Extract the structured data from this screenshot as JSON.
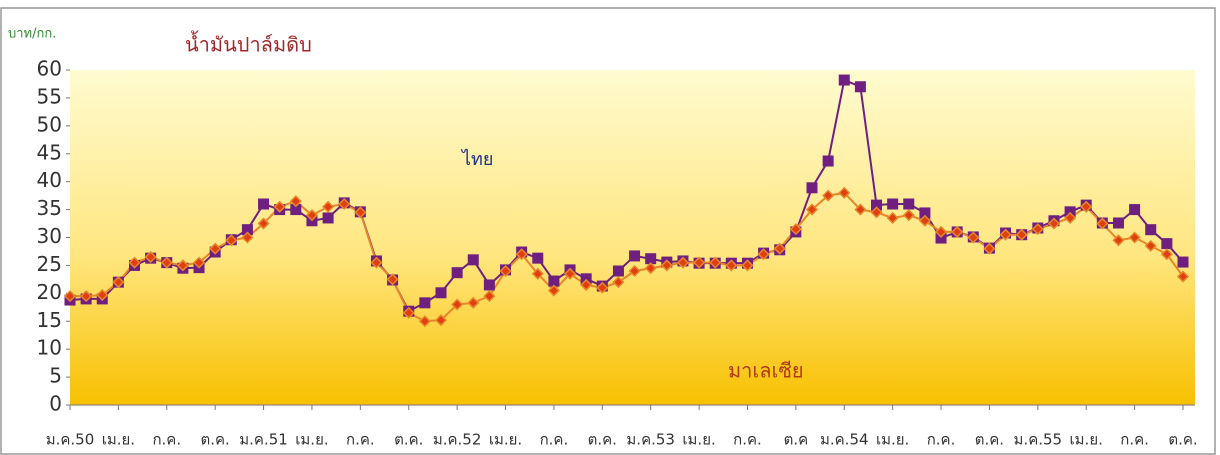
{
  "chart_data": {
    "type": "line",
    "title": "น้ำมันปาล์มดิบ",
    "y_label": "บาท/กก.",
    "categories": [
      "ม.ค.50",
      null,
      null,
      "เม.ย.",
      null,
      null,
      "ก.ค.",
      null,
      null,
      "ต.ค.",
      null,
      null,
      "ม.ค.51",
      null,
      null,
      "เม.ย.",
      null,
      null,
      "ก.ค.",
      null,
      null,
      "ต.ค.",
      null,
      null,
      "ม.ค.52",
      null,
      null,
      "เม.ย.",
      null,
      null,
      "ก.ค.",
      null,
      null,
      "ต.ค.",
      null,
      null,
      "ม.ค.53",
      null,
      null,
      "เม.ย.",
      null,
      null,
      "ก.ค.",
      null,
      null,
      "ต.ค",
      null,
      null,
      "ม.ค.54",
      null,
      null,
      "เม.ย.",
      null,
      null,
      "ก.ค.",
      null,
      null,
      "ต.ค.",
      null,
      null,
      "ม.ค.55",
      null,
      null,
      "เม.ย.",
      null,
      null,
      "ก.ค.",
      null,
      null,
      "ต.ค."
    ],
    "series": [
      {
        "name": "ไทย",
        "color": "#6e1f80",
        "marker": "square",
        "values": [
          18.8,
          19,
          19,
          22,
          25,
          26.3,
          25.5,
          24.5,
          24.6,
          27.4,
          29.6,
          31.4,
          36,
          35,
          35,
          33,
          33.5,
          36.2,
          34.6,
          25.8,
          22.4,
          16.8,
          18.3,
          20.1,
          23.7,
          26,
          21.5,
          24.2,
          27.4,
          26.3,
          22.2,
          24.2,
          22.6,
          21.3,
          24,
          26.7,
          26.2,
          25.6,
          25.8,
          25.4,
          25.4,
          25.4,
          25.4,
          27.2,
          27.8,
          31,
          38.9,
          43.7,
          58.2,
          57,
          35.8,
          36,
          36,
          34.4,
          29.9,
          31,
          30.1,
          28.1,
          30.8,
          30.5,
          31.7,
          33,
          34.6,
          35.8,
          32.6,
          32.6,
          35,
          31.4,
          28.9,
          25.6
        ]
      },
      {
        "name": "มาเลเซีย",
        "color": "#e8862a",
        "marker": "diamond",
        "values": [
          19.5,
          19.5,
          19.7,
          22,
          25.5,
          26.5,
          25.5,
          25,
          25.5,
          28,
          29.5,
          30,
          32.5,
          35.5,
          36.5,
          34,
          35.5,
          36,
          34.5,
          25.5,
          22.5,
          16.5,
          15,
          15.2,
          18,
          18.3,
          19.5,
          24,
          27,
          23.5,
          20.5,
          23.5,
          21.5,
          21,
          22,
          24,
          24.5,
          25,
          25.5,
          25.5,
          25.5,
          25,
          25,
          27,
          28,
          31.5,
          35,
          37.5,
          38,
          35,
          34.5,
          33.5,
          34,
          33,
          31,
          31,
          30,
          28,
          30.5,
          30.5,
          31.5,
          32.5,
          33.5,
          35.5,
          32.5,
          29.5,
          30,
          28.5,
          27,
          23
        ]
      }
    ],
    "ylim": [
      0,
      60
    ],
    "yticks": [
      0,
      5,
      10,
      15,
      20,
      25,
      30,
      35,
      40,
      45,
      50,
      55,
      60
    ]
  }
}
